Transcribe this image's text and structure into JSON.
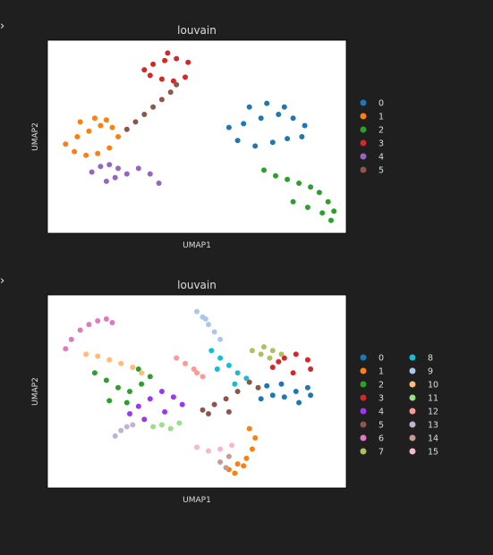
{
  "cells": [
    {
      "output_arrow": "›"
    },
    {
      "output_arrow": "›"
    }
  ],
  "chart_data": [
    {
      "type": "scatter",
      "title": "louvain",
      "xlabel": "UMAP1",
      "ylabel": "UMAP2",
      "xlim": [
        0,
        10
      ],
      "ylim": [
        0,
        10
      ],
      "ticks_shown": false,
      "grid": false,
      "legend": {
        "placement": "right",
        "columns": 1
      },
      "series": [
        {
          "name": "0",
          "color": "#1f77b4",
          "x": [
            6.1,
            6.6,
            7.2,
            7.8,
            8.3,
            8.7,
            6.4,
            7.0,
            7.6,
            8.1,
            8.6,
            6.8,
            7.4,
            8.0
          ],
          "y": [
            5.5,
            5.7,
            6.0,
            6.2,
            6.0,
            5.6,
            4.8,
            4.5,
            4.7,
            4.9,
            5.0,
            6.6,
            6.8,
            6.6
          ]
        },
        {
          "name": "1",
          "color": "#ff7f0e",
          "x": [
            0.5,
            0.9,
            1.3,
            1.7,
            2.1,
            2.3,
            0.8,
            1.2,
            1.6,
            2.0,
            1.0,
            1.5,
            1.9
          ],
          "y": [
            4.6,
            5.0,
            5.3,
            5.6,
            5.5,
            5.0,
            4.2,
            4.0,
            4.1,
            4.4,
            5.8,
            6.0,
            5.9
          ]
        },
        {
          "name": "2",
          "color": "#2ca02c",
          "x": [
            7.3,
            7.7,
            8.1,
            8.5,
            8.9,
            9.2,
            9.5,
            9.7,
            8.3,
            8.8,
            9.3,
            9.6
          ],
          "y": [
            3.2,
            2.9,
            2.7,
            2.5,
            2.3,
            2.0,
            1.5,
            1.0,
            1.5,
            1.2,
            0.9,
            0.5
          ]
        },
        {
          "name": "3",
          "color": "#d62728",
          "x": [
            3.2,
            3.5,
            3.9,
            4.3,
            4.7,
            3.4,
            3.8,
            4.2,
            4.6,
            4.0
          ],
          "y": [
            8.6,
            8.9,
            9.1,
            9.2,
            9.0,
            8.3,
            8.1,
            8.0,
            8.2,
            9.5
          ]
        },
        {
          "name": "4",
          "color": "#9467bd",
          "x": [
            1.4,
            1.7,
            2.0,
            2.3,
            2.6,
            1.9,
            2.2,
            3.0,
            3.4,
            3.7
          ],
          "y": [
            3.1,
            3.4,
            3.5,
            3.3,
            3.0,
            2.6,
            2.8,
            3.3,
            3.0,
            2.5
          ]
        },
        {
          "name": "5",
          "color": "#8c564b",
          "x": [
            2.6,
            2.9,
            3.2,
            3.5,
            3.8,
            4.1,
            4.3
          ],
          "y": [
            5.4,
            5.8,
            6.2,
            6.6,
            7.0,
            7.4,
            7.8
          ]
        }
      ]
    },
    {
      "type": "scatter",
      "title": "louvain",
      "xlabel": "UMAP1",
      "ylabel": "UMAP2",
      "xlim": [
        0,
        10
      ],
      "ylim": [
        0,
        10
      ],
      "ticks_shown": false,
      "grid": false,
      "legend": {
        "placement": "right",
        "columns": 2
      },
      "series": [
        {
          "name": "0",
          "color": "#1f77b4",
          "x": [
            7.2,
            7.6,
            8.0,
            8.4,
            8.8,
            7.4,
            7.9,
            8.5,
            8.9
          ],
          "y": [
            4.6,
            4.8,
            4.7,
            5.0,
            5.2,
            5.3,
            5.4,
            4.4,
            4.8
          ]
        },
        {
          "name": "1",
          "color": "#ff7f0e",
          "x": [
            6.1,
            6.4,
            6.7,
            6.9,
            7.0,
            6.3,
            6.6,
            6.8
          ],
          "y": [
            0.8,
            1.1,
            1.4,
            1.9,
            2.5,
            0.6,
            1.0,
            3.0
          ]
        },
        {
          "name": "2",
          "color": "#2ca02c",
          "x": [
            1.5,
            1.9,
            2.3,
            2.7,
            3.1,
            3.4,
            2.0,
            2.6,
            3.0
          ],
          "y": [
            6.0,
            5.6,
            5.2,
            5.0,
            5.4,
            5.8,
            4.5,
            4.4,
            6.2
          ]
        },
        {
          "name": "3",
          "color": "#d62728",
          "x": [
            7.6,
            8.0,
            8.4,
            8.8,
            8.9,
            8.3,
            7.8
          ],
          "y": [
            6.3,
            6.8,
            7.0,
            6.7,
            6.2,
            6.0,
            6.6
          ]
        },
        {
          "name": "4",
          "color": "#9d36f0",
          "x": [
            2.7,
            3.0,
            3.4,
            3.8,
            4.2,
            4.5,
            3.2,
            3.9
          ],
          "y": [
            3.8,
            4.2,
            4.6,
            5.0,
            4.7,
            4.3,
            3.5,
            3.9
          ]
        },
        {
          "name": "5",
          "color": "#8c564b",
          "x": [
            5.2,
            5.6,
            6.0,
            6.4,
            6.8,
            7.1,
            5.4,
            6.1
          ],
          "y": [
            4.0,
            4.3,
            4.6,
            5.0,
            5.5,
            5.2,
            3.8,
            3.9
          ]
        },
        {
          "name": "6",
          "color": "#e377c2",
          "x": [
            0.5,
            0.7,
            1.0,
            1.3,
            1.6,
            1.9,
            2.1
          ],
          "y": [
            7.3,
            7.8,
            8.3,
            8.6,
            8.8,
            8.9,
            8.7
          ]
        },
        {
          "name": "7",
          "color": "#b5bd61",
          "x": [
            6.9,
            7.3,
            7.6,
            7.9,
            7.2,
            7.5
          ],
          "y": [
            7.2,
            7.4,
            7.2,
            7.0,
            7.0,
            6.8
          ]
        },
        {
          "name": "8",
          "color": "#17becf",
          "x": [
            5.5,
            5.8,
            6.1,
            6.4,
            6.7,
            5.7,
            6.3
          ],
          "y": [
            7.2,
            6.8,
            6.4,
            6.0,
            5.7,
            6.2,
            5.4
          ]
        },
        {
          "name": "9",
          "color": "#aec7e8",
          "x": [
            5.0,
            5.2,
            5.4,
            5.6,
            5.8,
            5.3
          ],
          "y": [
            9.3,
            9.0,
            8.6,
            8.2,
            7.8,
            8.9
          ]
        },
        {
          "name": "10",
          "color": "#ffbb78",
          "x": [
            1.2,
            1.6,
            2.0,
            2.4,
            2.8,
            3.1
          ],
          "y": [
            7.0,
            6.9,
            6.7,
            6.5,
            6.3,
            6.0
          ]
        },
        {
          "name": "11",
          "color": "#98df8a",
          "x": [
            3.5,
            3.8,
            4.1,
            4.4
          ],
          "y": [
            3.1,
            3.2,
            3.0,
            3.3
          ]
        },
        {
          "name": "12",
          "color": "#ff9896",
          "x": [
            4.3,
            4.6,
            4.9,
            5.2,
            5.0
          ],
          "y": [
            6.8,
            6.5,
            6.2,
            5.8,
            6.0
          ]
        },
        {
          "name": "13",
          "color": "#c5b0d5",
          "x": [
            2.2,
            2.4,
            2.6,
            2.8
          ],
          "y": [
            2.6,
            2.9,
            3.1,
            3.2
          ]
        },
        {
          "name": "14",
          "color": "#c49c94",
          "x": [
            5.8,
            6.0,
            6.1
          ],
          "y": [
            1.2,
            0.9,
            1.5
          ]
        },
        {
          "name": "15",
          "color": "#f7b6d2",
          "x": [
            5.0,
            5.4,
            5.8,
            6.2
          ],
          "y": [
            2.0,
            1.8,
            1.9,
            2.1
          ]
        }
      ]
    }
  ]
}
